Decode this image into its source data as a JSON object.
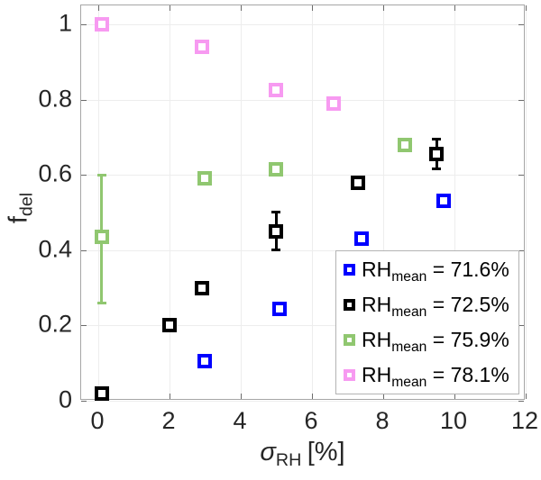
{
  "figure": {
    "background": "#ffffff"
  },
  "colors": {
    "grid": "#ededed",
    "axis_box": "#a6a6a6",
    "tick_mark": "#6b6b6b",
    "tick_text": "#262626",
    "legend_border": "#b3b3b3",
    "series_blue": "#0000ff",
    "series_black": "#000000",
    "series_green": "#90c770",
    "series_pink": "#f79af1"
  },
  "chart_data": {
    "type": "scatter",
    "title": "",
    "xlabel": {
      "symbol": "σ",
      "subscript": "RH",
      "suffix": "[%]"
    },
    "ylabel": {
      "symbol": "f",
      "subscript": "del"
    },
    "xlim": [
      -0.48,
      12
    ],
    "ylim": [
      0,
      1.05
    ],
    "xticks": [
      0,
      2,
      4,
      6,
      8,
      10,
      12
    ],
    "yticks": [
      0,
      0.2,
      0.4,
      0.6,
      0.8,
      1
    ],
    "grid": true,
    "legend_position": "lower-right",
    "marker": "open-square",
    "series": [
      {
        "name": "RH_mean = 71.6%",
        "color": "#0000ff",
        "legend": {
          "prefix": "RH",
          "sub": "mean",
          "value": "= 71.6%"
        },
        "points": [
          {
            "x": 3.0,
            "y": 0.105
          },
          {
            "x": 5.1,
            "y": 0.245
          },
          {
            "x": 7.4,
            "y": 0.43
          },
          {
            "x": 9.7,
            "y": 0.53
          }
        ]
      },
      {
        "name": "RH_mean = 72.5%",
        "color": "#000000",
        "legend": {
          "prefix": "RH",
          "sub": "mean",
          "value": "= 72.5%"
        },
        "points": [
          {
            "x": 0.1,
            "y": 0.02
          },
          {
            "x": 2.0,
            "y": 0.2
          },
          {
            "x": 2.9,
            "y": 0.3
          },
          {
            "x": 5.0,
            "y": 0.45,
            "err": [
              0.4,
              0.5
            ]
          },
          {
            "x": 7.3,
            "y": 0.58
          },
          {
            "x": 9.5,
            "y": 0.655,
            "err": [
              0.615,
              0.695
            ]
          }
        ]
      },
      {
        "name": "RH_mean = 75.9%",
        "color": "#90c770",
        "legend": {
          "prefix": "RH",
          "sub": "mean",
          "value": "= 75.9%"
        },
        "points": [
          {
            "x": 0.1,
            "y": 0.435,
            "err": [
              0.26,
              0.6
            ]
          },
          {
            "x": 3.0,
            "y": 0.59
          },
          {
            "x": 5.0,
            "y": 0.615
          },
          {
            "x": 8.6,
            "y": 0.68
          }
        ]
      },
      {
        "name": "RH_mean = 78.1%",
        "color": "#f79af1",
        "legend": {
          "prefix": "RH",
          "sub": "mean",
          "value": "= 78.1%"
        },
        "points": [
          {
            "x": 0.1,
            "y": 1.0
          },
          {
            "x": 2.9,
            "y": 0.94
          },
          {
            "x": 5.0,
            "y": 0.825
          },
          {
            "x": 6.6,
            "y": 0.79
          }
        ]
      }
    ]
  }
}
